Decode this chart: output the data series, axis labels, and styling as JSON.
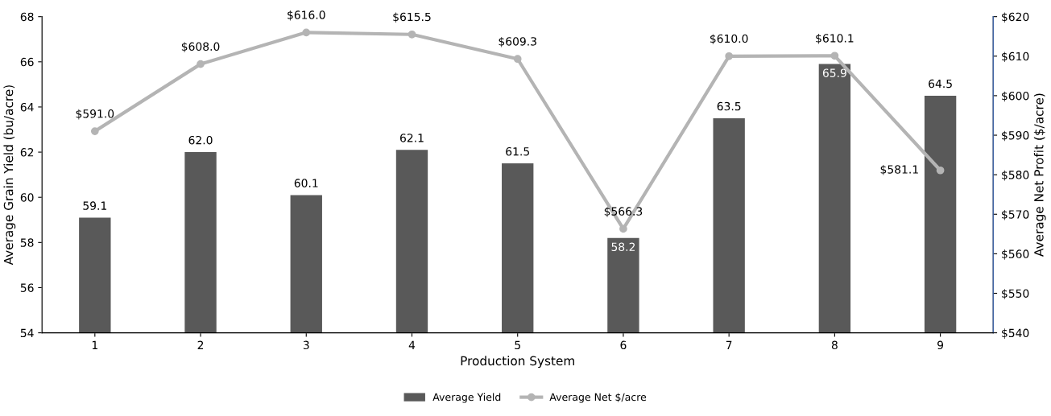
{
  "chart_data": {
    "type": "bar",
    "xlabel": "Production System",
    "ylabel": "Average Grain Yield (bu/acre)",
    "y2label": "Average Net Profit ($/acre)",
    "categories": [
      "1",
      "2",
      "3",
      "4",
      "5",
      "6",
      "7",
      "8",
      "9"
    ],
    "series": [
      {
        "name": "Average Yield",
        "color": "#595959",
        "values": [
          59.1,
          62.0,
          60.1,
          62.1,
          61.5,
          58.2,
          63.5,
          65.9,
          64.5
        ],
        "value_labels": [
          "59.1",
          "62.0",
          "60.1",
          "62.1",
          "61.5",
          "58.2",
          "63.5",
          "65.9",
          "64.5"
        ]
      },
      {
        "name": "Average Net $/acre",
        "type": "line",
        "axis": "y2",
        "color": "#b4b4b4",
        "values": [
          591.0,
          608.0,
          616.0,
          615.5,
          609.3,
          566.3,
          610.0,
          610.1,
          581.1
        ],
        "value_labels": [
          "$591.0",
          "$608.0",
          "$616.0",
          "$615.5",
          "$609.3",
          "$566.3",
          "$610.0",
          "$610.1",
          "$581.1"
        ]
      }
    ],
    "ylim": [
      54,
      68
    ],
    "yticks": [
      54,
      56,
      58,
      60,
      62,
      64,
      66,
      68
    ],
    "y2lim": [
      540,
      620
    ],
    "y2ticks": [
      {
        "value": 540,
        "label": "$540"
      },
      {
        "value": 550,
        "label": "$550"
      },
      {
        "value": 560,
        "label": "$560"
      },
      {
        "value": 570,
        "label": "$570"
      },
      {
        "value": 580,
        "label": "$580"
      },
      {
        "value": 590,
        "label": "$590"
      },
      {
        "value": 600,
        "label": "$600"
      },
      {
        "value": 610,
        "label": "$610"
      },
      {
        "value": 620,
        "label": "$620"
      }
    ],
    "marker": "circle",
    "legend": "bottom",
    "grid": false
  }
}
